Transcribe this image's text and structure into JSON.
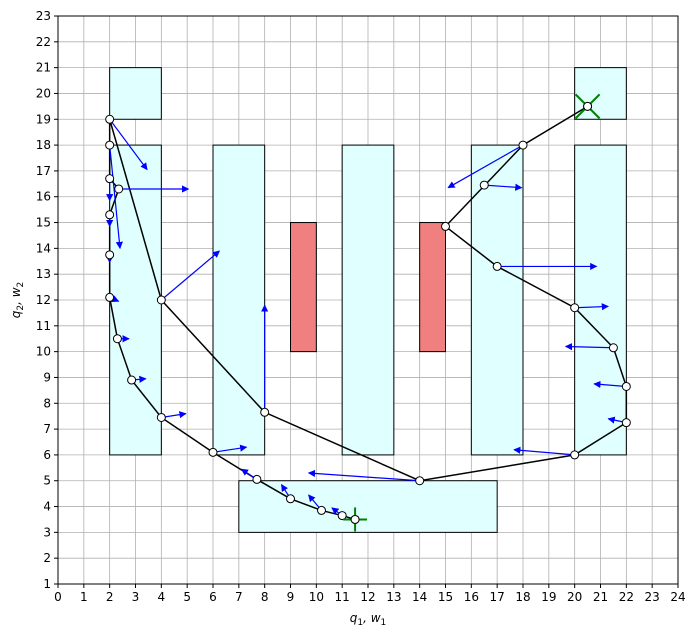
{
  "chart_data": {
    "type": "line",
    "xlabel_text": "q",
    "xlabel_sub1": "1",
    "xlabel_sep": ", w",
    "xlabel_sub2": "1",
    "ylabel_text": "q",
    "ylabel_sub1": "2",
    "ylabel_sep": ", w",
    "ylabel_sub2": "2",
    "xlim": [
      0,
      24
    ],
    "ylim": [
      1,
      23
    ],
    "xticks": [
      0,
      1,
      2,
      3,
      4,
      5,
      6,
      7,
      8,
      9,
      10,
      11,
      12,
      13,
      14,
      15,
      16,
      17,
      18,
      19,
      20,
      21,
      22,
      23,
      24
    ],
    "yticks": [
      1,
      2,
      3,
      4,
      5,
      6,
      7,
      8,
      9,
      10,
      11,
      12,
      13,
      14,
      15,
      16,
      17,
      18,
      19,
      20,
      21,
      22,
      23
    ],
    "grid": true,
    "colors": {
      "obstacle_fill": "#e0ffff",
      "obstacle_red": "#f08080",
      "path": "#000000",
      "arrow": "#0000ff",
      "marker": "#008000"
    },
    "regions": [
      {
        "x": [
          2,
          4
        ],
        "y": [
          19,
          21
        ],
        "color": "cyan"
      },
      {
        "x": [
          2,
          4
        ],
        "y": [
          6,
          18
        ],
        "color": "cyan"
      },
      {
        "x": [
          6,
          8
        ],
        "y": [
          6,
          18
        ],
        "color": "cyan"
      },
      {
        "x": [
          11,
          13
        ],
        "y": [
          6,
          18
        ],
        "color": "cyan"
      },
      {
        "x": [
          16,
          18
        ],
        "y": [
          6,
          18
        ],
        "color": "cyan"
      },
      {
        "x": [
          20,
          22
        ],
        "y": [
          6,
          18
        ],
        "color": "cyan"
      },
      {
        "x": [
          20,
          22
        ],
        "y": [
          19,
          21
        ],
        "color": "cyan"
      },
      {
        "x": [
          7,
          17
        ],
        "y": [
          3,
          5
        ],
        "color": "cyan"
      },
      {
        "x": [
          9,
          10
        ],
        "y": [
          10,
          15
        ],
        "color": "red"
      },
      {
        "x": [
          14,
          15
        ],
        "y": [
          10,
          15
        ],
        "color": "red"
      }
    ],
    "path": [
      [
        20.5,
        19.5
      ],
      [
        18,
        18
      ],
      [
        15,
        14.85
      ],
      [
        17,
        13.3
      ],
      [
        20,
        11.7
      ],
      [
        21.5,
        10.15
      ],
      [
        22,
        8.65
      ],
      [
        22,
        7.25
      ],
      [
        20,
        6
      ],
      [
        14,
        5
      ],
      [
        8,
        7.65
      ],
      [
        4,
        12
      ],
      [
        2,
        19
      ],
      [
        2,
        18
      ],
      [
        2,
        16.7
      ],
      [
        2.35,
        16.3
      ],
      [
        2,
        15.3
      ],
      [
        2,
        13.75
      ],
      [
        2,
        12.1
      ],
      [
        2.3,
        10.5
      ],
      [
        2.85,
        8.9
      ],
      [
        4,
        7.45
      ],
      [
        6,
        6.1
      ],
      [
        7.7,
        5.05
      ],
      [
        9,
        4.3
      ],
      [
        10.2,
        3.85
      ],
      [
        11,
        3.65
      ],
      [
        11.5,
        3.5
      ]
    ],
    "points": [
      [
        20.5,
        19.5
      ],
      [
        18,
        18
      ],
      [
        16.5,
        16.45
      ],
      [
        15,
        14.85
      ],
      [
        17,
        13.3
      ],
      [
        20,
        11.7
      ],
      [
        21.5,
        10.15
      ],
      [
        22,
        8.65
      ],
      [
        22,
        7.25
      ],
      [
        20,
        6
      ],
      [
        14,
        5
      ],
      [
        8,
        7.65
      ],
      [
        4,
        12
      ],
      [
        2,
        19
      ],
      [
        2,
        18
      ],
      [
        2,
        16.7
      ],
      [
        2.35,
        16.3
      ],
      [
        2,
        15.3
      ],
      [
        2,
        13.75
      ],
      [
        2,
        12.1
      ],
      [
        2.3,
        10.5
      ],
      [
        2.85,
        8.9
      ],
      [
        4,
        7.45
      ],
      [
        6,
        6.1
      ],
      [
        7.7,
        5.05
      ],
      [
        9,
        4.3
      ],
      [
        10.2,
        3.85
      ],
      [
        11,
        3.65
      ],
      [
        11.5,
        3.5
      ]
    ],
    "arrows": [
      [
        2,
        19,
        3.45,
        17.05
      ],
      [
        2,
        18,
        2.4,
        14.0
      ],
      [
        2,
        16.7,
        2.0,
        15.85
      ],
      [
        2.35,
        16.3,
        5.05,
        16.3
      ],
      [
        2,
        15.3,
        2.0,
        14.85
      ],
      [
        2,
        13.75,
        2.0,
        13.45
      ],
      [
        2,
        12.1,
        2.35,
        11.95
      ],
      [
        2.3,
        10.5,
        2.75,
        10.5
      ],
      [
        2.85,
        8.9,
        3.4,
        8.95
      ],
      [
        4,
        12,
        6.25,
        13.9
      ],
      [
        4,
        7.45,
        4.95,
        7.6
      ],
      [
        6,
        6.1,
        7.3,
        6.3
      ],
      [
        8,
        7.65,
        8.0,
        11.8
      ],
      [
        7.7,
        5.05,
        7.1,
        5.45
      ],
      [
        9,
        4.3,
        8.65,
        4.85
      ],
      [
        10.2,
        3.85,
        9.7,
        4.45
      ],
      [
        11,
        3.65,
        10.6,
        3.95
      ],
      [
        14,
        5,
        9.7,
        5.3
      ],
      [
        16.5,
        16.45,
        17.95,
        16.35
      ],
      [
        18,
        18,
        15.1,
        16.35
      ],
      [
        17,
        13.3,
        20.85,
        13.3
      ],
      [
        20,
        11.7,
        21.3,
        11.75
      ],
      [
        21.5,
        10.15,
        19.65,
        10.2
      ],
      [
        22,
        8.65,
        20.75,
        8.75
      ],
      [
        22,
        7.25,
        21.3,
        7.4
      ],
      [
        20,
        6,
        17.65,
        6.2
      ]
    ],
    "goal_marker": [
      20.5,
      19.5
    ],
    "start_marker": [
      11.5,
      3.5
    ]
  }
}
